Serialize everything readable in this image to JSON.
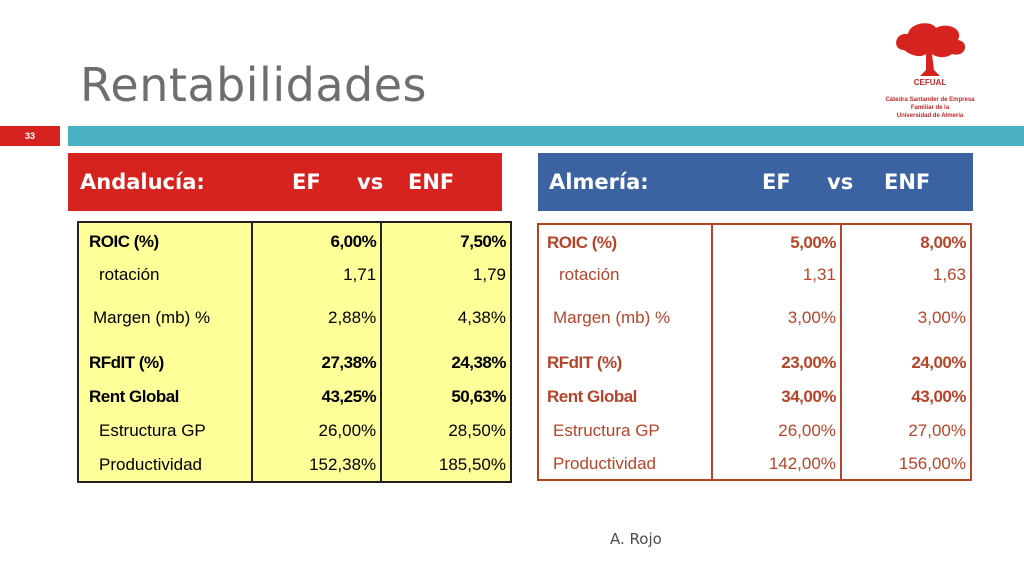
{
  "title": "Rentabilidades",
  "slide_number": "33",
  "footer": "A. Rojo",
  "logo": {
    "name": "CEFUAL",
    "line1": "Cátedra Santander de Empresa",
    "line2": "Familiar de la",
    "line3": "Universidad de Almería"
  },
  "left_panel": {
    "region": "Andalucía:",
    "col1": "EF",
    "vs": "vs",
    "col2": "ENF",
    "rows": [
      {
        "label": "ROIC (%)",
        "ef": "6,00%",
        "enf": "7,50%"
      },
      {
        "label": "rotación",
        "ef": "1,71",
        "enf": "1,79"
      },
      {
        "label": "Margen (mb) %",
        "ef": "2,88%",
        "enf": "4,38%"
      },
      {
        "label": "RFdIT (%)",
        "ef": "27,38%",
        "enf": "24,38%"
      },
      {
        "label": "Rent Global",
        "ef": "43,25%",
        "enf": "50,63%"
      },
      {
        "label": "Estructura GP",
        "ef": "26,00%",
        "enf": "28,50%"
      },
      {
        "label": "Productividad",
        "ef": "152,38%",
        "enf": "185,50%"
      }
    ]
  },
  "right_panel": {
    "region": "Almería:",
    "col1": "EF",
    "vs": "vs",
    "col2": "ENF",
    "rows": [
      {
        "label": "ROIC (%)",
        "ef": "5,00%",
        "enf": "8,00%"
      },
      {
        "label": "rotación",
        "ef": "1,31",
        "enf": "1,63"
      },
      {
        "label": "Margen (mb) %",
        "ef": "3,00%",
        "enf": "3,00%"
      },
      {
        "label": "RFdIT (%)",
        "ef": "23,00%",
        "enf": "24,00%"
      },
      {
        "label": "Rent Global",
        "ef": "34,00%",
        "enf": "43,00%"
      },
      {
        "label": "Estructura GP",
        "ef": "26,00%",
        "enf": "27,00%"
      },
      {
        "label": "Productividad",
        "ef": "142,00%",
        "enf": "156,00%"
      }
    ]
  },
  "colors": {
    "accent_red": "#d6231f",
    "accent_blue": "#3b63a2",
    "bar_teal": "#4bb1c4",
    "table_yellow": "#ffff99",
    "table_text_brown": "#b5452a"
  }
}
